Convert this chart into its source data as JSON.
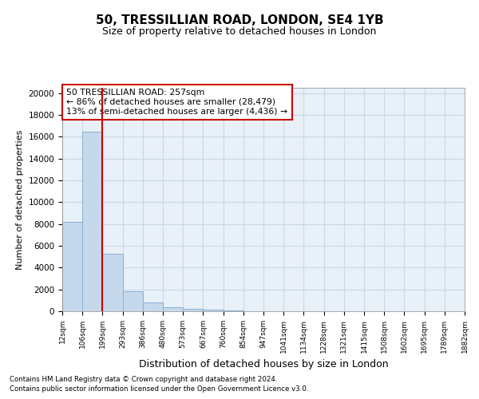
{
  "title": "50, TRESSILLIAN ROAD, LONDON, SE4 1YB",
  "subtitle": "Size of property relative to detached houses in London",
  "xlabel": "Distribution of detached houses by size in London",
  "ylabel": "Number of detached properties",
  "bar_values": [
    8200,
    16500,
    5300,
    1850,
    800,
    350,
    200,
    150,
    100,
    0,
    0,
    0,
    0,
    0,
    0,
    0,
    0,
    0,
    0,
    0
  ],
  "bin_labels": [
    "12sqm",
    "106sqm",
    "199sqm",
    "293sqm",
    "386sqm",
    "480sqm",
    "573sqm",
    "667sqm",
    "760sqm",
    "854sqm",
    "947sqm",
    "1041sqm",
    "1134sqm",
    "1228sqm",
    "1321sqm",
    "1415sqm",
    "1508sqm",
    "1602sqm",
    "1695sqm",
    "1789sqm",
    "1882sqm"
  ],
  "bar_color": "#c5d8ec",
  "bar_edge_color": "#8aafd0",
  "vline_x": 2.0,
  "vline_color": "#cc0000",
  "annotation_text": "50 TRESSILLIAN ROAD: 257sqm\n← 86% of detached houses are smaller (28,479)\n13% of semi-detached houses are larger (4,436) →",
  "annotation_box_color": "#cc0000",
  "ylim": [
    0,
    20500
  ],
  "yticks": [
    0,
    2000,
    4000,
    6000,
    8000,
    10000,
    12000,
    14000,
    16000,
    18000,
    20000
  ],
  "grid_color": "#c8d8e8",
  "background_color": "#e8f0f8",
  "footnote1": "Contains HM Land Registry data © Crown copyright and database right 2024.",
  "footnote2": "Contains public sector information licensed under the Open Government Licence v3.0."
}
